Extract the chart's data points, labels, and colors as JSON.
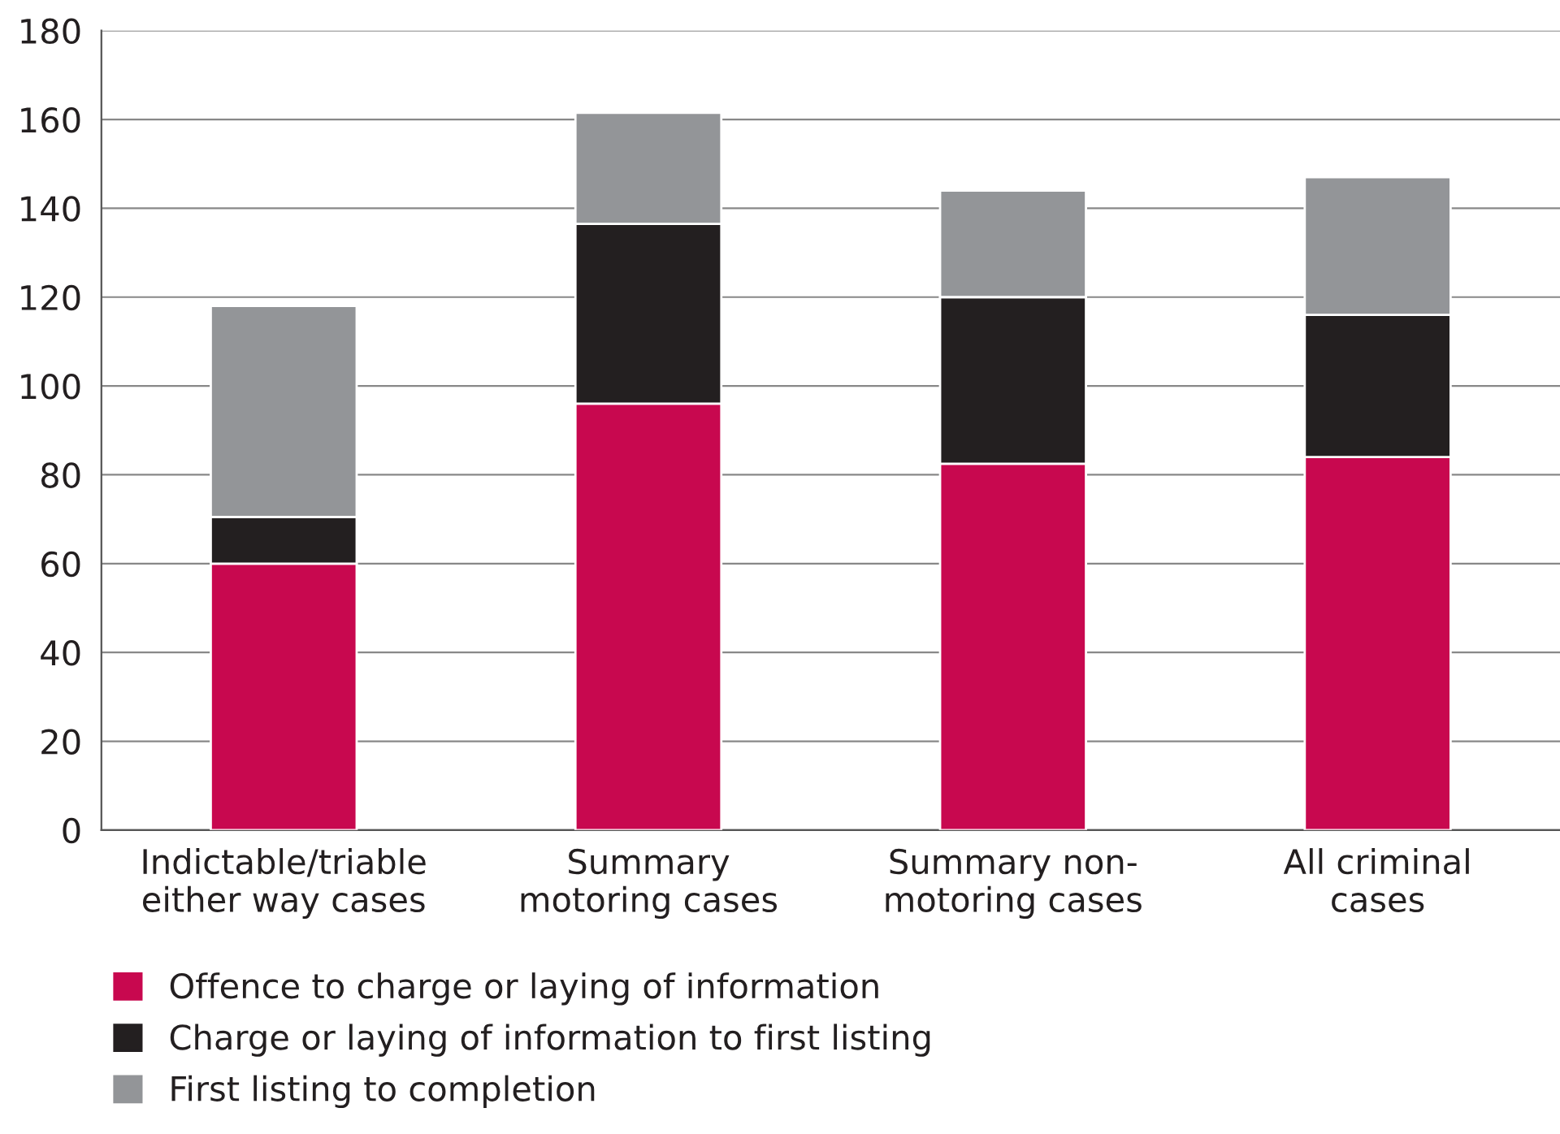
{
  "chart_data": {
    "type": "bar",
    "stacked": true,
    "categories": [
      "Indictable/triable\neither way cases",
      "Summary\nmotoring cases",
      "Summary non-\nmotoring cases",
      "All criminal\ncases"
    ],
    "series": [
      {
        "name": "Offence to charge or laying of information",
        "color": "#c8084f",
        "values": [
          60,
          96,
          82.5,
          84
        ]
      },
      {
        "name": "Charge or laying of information to first listing",
        "color": "#231f20",
        "values": [
          10.5,
          40.5,
          37.5,
          32
        ]
      },
      {
        "name": "First listing to completion",
        "color": "#939598",
        "values": [
          47.5,
          25,
          24,
          31
        ]
      }
    ],
    "ylim": [
      0,
      180
    ],
    "yticks": [
      0,
      20,
      40,
      60,
      80,
      100,
      120,
      140,
      160,
      180
    ],
    "grid": "y",
    "legend": "bottom left"
  }
}
